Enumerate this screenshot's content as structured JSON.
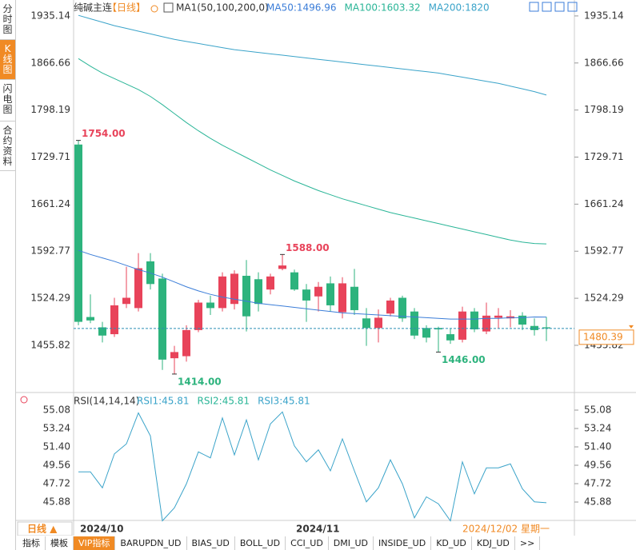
{
  "ui": {
    "sidebar": [
      "分时图",
      "K线图",
      "闪电图",
      "合约资料"
    ],
    "header": {
      "symbol": "纯碱主连",
      "period": "【日线】",
      "indicator": "MA1(50,100,200,0)"
    },
    "rsi_header": "RSI(14,14,14)",
    "period_button": "日线 ▲",
    "cursor_date": "2024/12/02 星期一",
    "bottom_tabs": [
      "指标",
      "模板",
      "VIP指标",
      "BARUPDN_UD",
      "BIAS_UD",
      "BOLL_UD",
      "CCI_UD",
      "DMI_UD",
      "INSIDE_UD",
      "KD_UD",
      "KDJ_UD",
      ">>"
    ]
  },
  "chart_data": [
    {
      "type": "candlestick",
      "open": [
        1748,
        1497,
        1482,
        1472,
        1516,
        1510,
        1578,
        1553,
        1437,
        1440,
        1478,
        1518,
        1510,
        1516,
        1557,
        1552,
        1537,
        1567,
        1562,
        1537,
        1527,
        1546,
        1504,
        1541,
        1495,
        1481,
        1502,
        1525,
        1505,
        1481,
        1481,
        1472,
        1464,
        1505,
        1476,
        1496,
        1495,
        1499,
        1484,
        1482
      ],
      "high": [
        1754,
        1530,
        1490,
        1525,
        1570,
        1590,
        1590,
        1560,
        1455,
        1485,
        1522,
        1528,
        1562,
        1565,
        1580,
        1562,
        1560,
        1588,
        1566,
        1545,
        1548,
        1556,
        1555,
        1567,
        1510,
        1508,
        1525,
        1528,
        1510,
        1485,
        1483,
        1480,
        1512,
        1510,
        1518,
        1510,
        1507,
        1504,
        1495,
        1497
      ],
      "low": [
        1485,
        1488,
        1460,
        1468,
        1510,
        1505,
        1537,
        1420,
        1414,
        1432,
        1475,
        1500,
        1505,
        1508,
        1476,
        1505,
        1530,
        1565,
        1535,
        1490,
        1505,
        1505,
        1495,
        1500,
        1455,
        1460,
        1498,
        1490,
        1465,
        1460,
        1446,
        1458,
        1460,
        1475,
        1472,
        1480,
        1482,
        1478,
        1470,
        1462
      ],
      "close": [
        1490,
        1492,
        1470,
        1514,
        1525,
        1568,
        1545,
        1435,
        1446,
        1478,
        1518,
        1510,
        1556,
        1560,
        1498,
        1516,
        1556,
        1572,
        1537,
        1521,
        1541,
        1514,
        1546,
        1507,
        1481,
        1496,
        1521,
        1495,
        1470,
        1467,
        1479,
        1463,
        1505,
        1479,
        1499,
        1499,
        1498,
        1486,
        1478,
        1480.39
      ],
      "up_color": "#e8435a",
      "down_color": "#2db37d",
      "series": [
        {
          "name": "MA50:1496.96",
          "color": "#3b7dd8",
          "values": [
            1594,
            1588,
            1583,
            1578,
            1572,
            1566,
            1561,
            1555,
            1548,
            1541,
            1535,
            1530,
            1526,
            1523,
            1520,
            1517,
            1515,
            1513,
            1511,
            1509,
            1507,
            1505,
            1503,
            1502,
            1501,
            1500,
            1499,
            1498,
            1497,
            1496,
            1495,
            1494,
            1494,
            1494,
            1495,
            1495,
            1496,
            1496,
            1497,
            1496.96
          ]
        },
        {
          "name": "MA100:1603.32",
          "color": "#2ab597",
          "values": [
            1873,
            1862,
            1852,
            1844,
            1836,
            1828,
            1818,
            1806,
            1793,
            1780,
            1768,
            1757,
            1747,
            1738,
            1729,
            1720,
            1711,
            1703,
            1695,
            1688,
            1681,
            1675,
            1669,
            1664,
            1659,
            1654,
            1649,
            1645,
            1641,
            1637,
            1633,
            1629,
            1625,
            1621,
            1617,
            1613,
            1609,
            1606,
            1604,
            1603.32
          ]
        },
        {
          "name": "MA200:1820",
          "color": "#3aa3c9",
          "values": [
            1936,
            1931,
            1926,
            1921,
            1917,
            1913,
            1909,
            1905,
            1901,
            1898,
            1895,
            1892,
            1889,
            1886,
            1884,
            1882,
            1880,
            1878,
            1876,
            1874,
            1872,
            1870,
            1868,
            1866,
            1864,
            1862,
            1860,
            1858,
            1856,
            1854,
            1852,
            1849,
            1846,
            1843,
            1840,
            1837,
            1833,
            1829,
            1825,
            1820
          ]
        }
      ],
      "ylim": [
        1388.3,
        1952.5
      ],
      "yticks": [
        1935.14,
        1866.66,
        1798.19,
        1729.71,
        1661.24,
        1592.77,
        1524.29,
        1455.82
      ],
      "last_price": 1480.39,
      "annotations": [
        {
          "value": 1754,
          "label": "1754.00",
          "color": "#e8435a"
        },
        {
          "value": 1588,
          "label": "1588.00",
          "color": "#e8435a"
        },
        {
          "value": 1414,
          "label": "1414.00",
          "color": "#2db37d"
        },
        {
          "value": 1446,
          "label": "1446.00",
          "color": "#2db37d"
        }
      ]
    },
    {
      "type": "line",
      "categories": [
        "2024/10",
        null,
        null,
        null,
        null,
        null,
        null,
        null,
        null,
        null,
        null,
        null,
        null,
        null,
        null,
        null,
        null,
        null,
        "2024/11",
        null,
        null,
        null,
        null,
        null,
        null,
        null,
        null,
        null,
        null,
        null,
        null,
        null,
        null,
        null,
        null,
        null,
        null,
        null,
        null,
        null
      ],
      "series": [
        {
          "name": "RSI1:45.81",
          "color": "#3aa3c9",
          "values": [
            48.9,
            48.9,
            47.3,
            50.7,
            51.7,
            54.8,
            52.5,
            44.0,
            45.3,
            47.7,
            50.9,
            50.3,
            54.3,
            50.6,
            54.1,
            50.1,
            53.7,
            54.9,
            51.5,
            49.9,
            51.1,
            49.0,
            52.2,
            49.0,
            45.9,
            47.3,
            50.1,
            47.7,
            44.3,
            46.4,
            45.7,
            44.0,
            49.9,
            46.7,
            49.3,
            49.3,
            49.7,
            47.2,
            45.9,
            45.81
          ]
        }
      ],
      "legend_labels": [
        {
          "label": "RSI2:45.81",
          "color": "#2ab597"
        },
        {
          "label": "RSI3:45.81",
          "color": "#3aa3c9"
        }
      ],
      "ylim": [
        43.72,
        55.72
      ],
      "yticks": [
        55.08,
        53.24,
        {
          "value": 51.4,
          "label": "51.40"
        },
        49.56,
        47.72,
        45.88
      ]
    }
  ]
}
